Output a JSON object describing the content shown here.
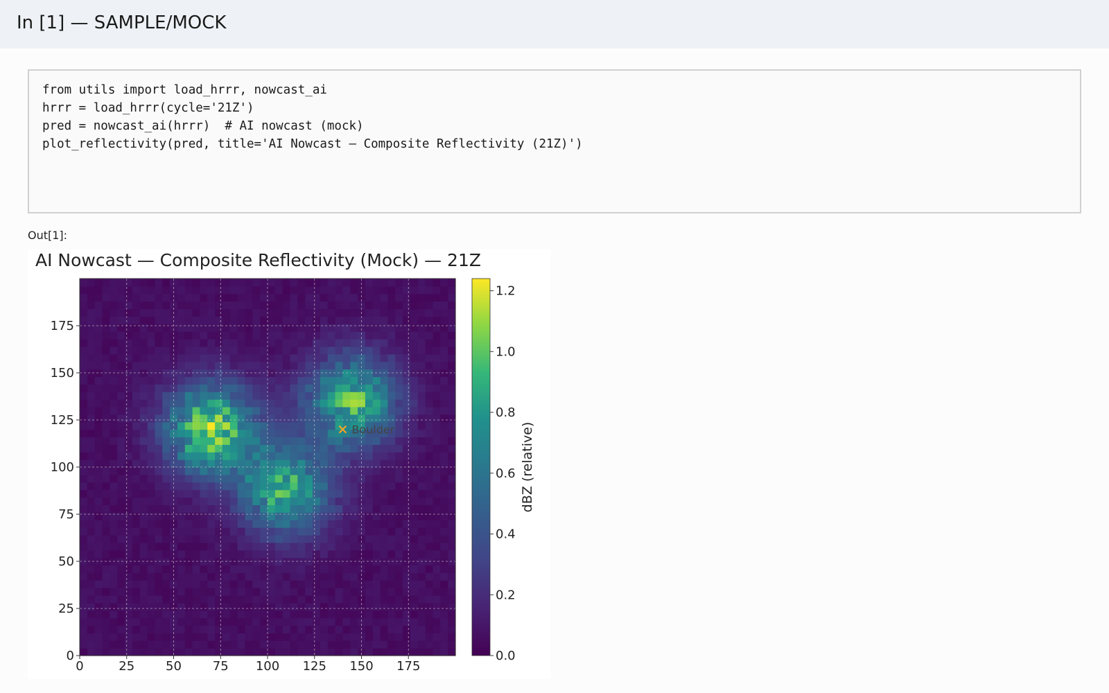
{
  "cell": {
    "title": "In [1] — SAMPLE/MOCK",
    "code_lines": [
      "from utils import load_hrrr, nowcast_ai",
      "hrrr = load_hrrr(cycle='21Z')",
      "pred = nowcast_ai(hrrr)  # AI nowcast (mock)",
      "plot_reflectivity(pred, title='AI Nowcast — Composite Reflectivity (21Z)')"
    ]
  },
  "output": {
    "label": "Out[1]:"
  },
  "chart_data": {
    "type": "heatmap",
    "title": "AI Nowcast — Composite Reflectivity (Mock) — 21Z",
    "xlabel": "",
    "ylabel": "",
    "xlim": [
      0,
      200
    ],
    "ylim": [
      0,
      200
    ],
    "x_ticks": [
      0,
      25,
      50,
      75,
      100,
      125,
      150,
      175
    ],
    "y_ticks": [
      0,
      25,
      50,
      75,
      100,
      125,
      150,
      175
    ],
    "grid": true,
    "colormap": "viridis",
    "colorbar": {
      "label": "dBZ (relative)",
      "range": [
        0,
        1.24
      ],
      "ticks": [
        "0.0",
        "0.2",
        "0.4",
        "0.6",
        "0.8",
        "1.0",
        "1.2"
      ]
    },
    "blobs": [
      {
        "x": 70,
        "y": 120,
        "peak": 1.05
      },
      {
        "x": 110,
        "y": 88,
        "peak": 0.85
      },
      {
        "x": 145,
        "y": 135,
        "peak": 0.9
      }
    ],
    "background_level": 0.06,
    "marker": {
      "x": 140,
      "y": 120,
      "label": "Boulder",
      "color": "#f5a623",
      "symbol": "x"
    }
  }
}
